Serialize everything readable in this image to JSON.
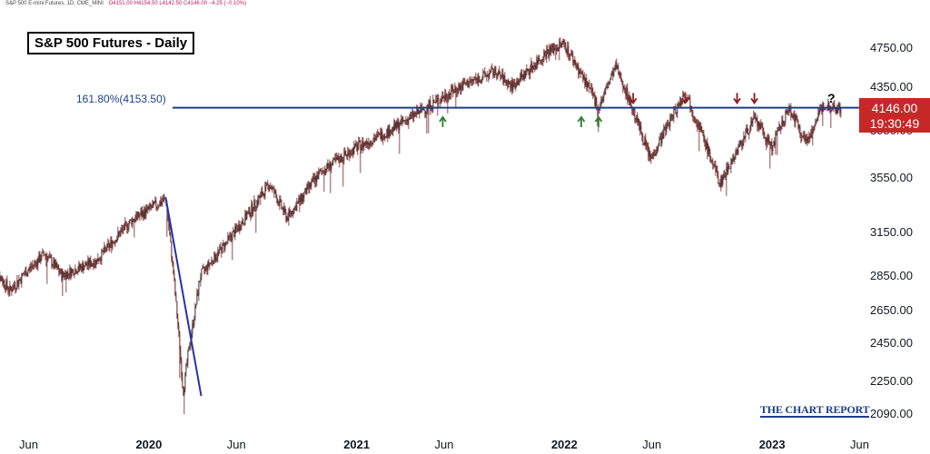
{
  "header": {
    "ticker_line": "S&P 500 E-mini Futures, 1D, CME_MINI",
    "ohlc_line": "O4151.00 H4154.50 L4142.50 C4146.00 −4.25 (−0.10%)"
  },
  "chart_data": {
    "type": "candlestick",
    "title": "S&P 500 Futures - Daily",
    "fib_level": {
      "label": "161.80%(4153.50)",
      "value": 4153.5
    },
    "last_price": "4146.00",
    "countdown": "19:30:49",
    "y_ticks": [
      "4750.00",
      "4350.00",
      "3950.00",
      "3550.00",
      "3150.00",
      "2850.00",
      "2650.00",
      "2450.00",
      "2250.00",
      "2090.00"
    ],
    "y_tick_values": [
      4750,
      4350,
      3950,
      3550,
      3150,
      2850,
      2650,
      2450,
      2250,
      2090
    ],
    "x_ticks": [
      {
        "label": "Jun",
        "date": "2019-06",
        "bold": false
      },
      {
        "label": "2020",
        "date": "2020-01",
        "bold": true
      },
      {
        "label": "Jun",
        "date": "2020-06",
        "bold": false
      },
      {
        "label": "2021",
        "date": "2021-01",
        "bold": true
      },
      {
        "label": "Jun",
        "date": "2021-06",
        "bold": false
      },
      {
        "label": "2022",
        "date": "2022-01",
        "bold": true
      },
      {
        "label": "Jun",
        "date": "2022-06",
        "bold": false
      },
      {
        "label": "2023",
        "date": "2023-01",
        "bold": true
      },
      {
        "label": "Jun",
        "date": "2023-06",
        "bold": false
      }
    ],
    "price_path": [
      {
        "date": "2019-04",
        "close": 2900
      },
      {
        "date": "2019-05",
        "close": 2760
      },
      {
        "date": "2019-07",
        "close": 3000
      },
      {
        "date": "2019-08",
        "close": 2850
      },
      {
        "date": "2019-10",
        "close": 2950
      },
      {
        "date": "2019-12",
        "close": 3230
      },
      {
        "date": "2020-02",
        "close": 3390
      },
      {
        "date": "2020-03",
        "close": 2190
      },
      {
        "date": "2020-04",
        "close": 2850
      },
      {
        "date": "2020-06",
        "close": 3150
      },
      {
        "date": "2020-08",
        "close": 3500
      },
      {
        "date": "2020-09",
        "close": 3250
      },
      {
        "date": "2020-11",
        "close": 3600
      },
      {
        "date": "2021-01",
        "close": 3800
      },
      {
        "date": "2021-03",
        "close": 3950
      },
      {
        "date": "2021-05",
        "close": 4150
      },
      {
        "date": "2021-07",
        "close": 4350
      },
      {
        "date": "2021-09",
        "close": 4500
      },
      {
        "date": "2021-10",
        "close": 4350
      },
      {
        "date": "2021-12",
        "close": 4700
      },
      {
        "date": "2022-01",
        "close": 4790
      },
      {
        "date": "2022-03",
        "close": 4150
      },
      {
        "date": "2022-04",
        "close": 4550
      },
      {
        "date": "2022-06",
        "close": 3700
      },
      {
        "date": "2022-08",
        "close": 4300
      },
      {
        "date": "2022-10",
        "close": 3500
      },
      {
        "date": "2022-12",
        "close": 4050
      },
      {
        "date": "2023-01",
        "close": 3800
      },
      {
        "date": "2023-02",
        "close": 4150
      },
      {
        "date": "2023-03",
        "close": 3850
      },
      {
        "date": "2023-04",
        "close": 4180
      },
      {
        "date": "2023-05",
        "close": 4146
      }
    ],
    "crash_line": {
      "from": {
        "date": "2020-02",
        "value": 3397
      },
      "to": {
        "date": "2020-03",
        "value": 2174
      }
    },
    "up_arrows": [
      {
        "date": "2021-06",
        "value": 4100,
        "color": "#2e7d32"
      },
      {
        "date": "2022-02",
        "value": 4100,
        "color": "#2e7d32"
      },
      {
        "date": "2022-03",
        "value": 4100,
        "color": "#2e7d32"
      }
    ],
    "down_arrows": [
      {
        "date": "2022-05",
        "value": 4330,
        "color": "#8b1a1a"
      },
      {
        "date": "2022-08",
        "value": 4330,
        "color": "#8b1a1a"
      },
      {
        "date": "2022-11",
        "value": 4330,
        "color": "#8b1a1a"
      },
      {
        "date": "2022-12",
        "value": 4330,
        "color": "#8b1a1a"
      }
    ],
    "question_mark": "?",
    "colors": {
      "candle": "#6b1f1f",
      "fib_line": "#1e3f8a",
      "crash_line": "#2233aa",
      "price_tag": "#c62828"
    }
  },
  "watermark": "THE CHART REPORT"
}
